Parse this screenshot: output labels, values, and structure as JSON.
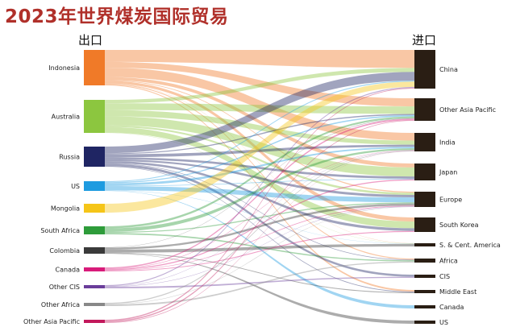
{
  "title": "2023年世界煤炭国际贸易",
  "export_header": "出口",
  "import_header": "进口",
  "colors": {
    "title": "#b0302a",
    "importer_node": "#2a1e14"
  },
  "exporters": [
    {
      "name": "Indonesia",
      "color": "#f07a28"
    },
    {
      "name": "Australia",
      "color": "#8cc63f"
    },
    {
      "name": "Russia",
      "color": "#1f2563"
    },
    {
      "name": "US",
      "color": "#1e9be0"
    },
    {
      "name": "Mongolia",
      "color": "#f5c518"
    },
    {
      "name": "South Africa",
      "color": "#2e9c3a"
    },
    {
      "name": "Colombia",
      "color": "#3a3a3a"
    },
    {
      "name": "Canada",
      "color": "#d81b7a"
    },
    {
      "name": "Other CIS",
      "color": "#6a3d9a"
    },
    {
      "name": "Other Africa",
      "color": "#888888"
    },
    {
      "name": "Other Asia Pacific",
      "color": "#c2185b"
    }
  ],
  "importers": [
    "China",
    "Other Asia Pacific",
    "India",
    "Japan",
    "Europe",
    "South Korea",
    "S. & Cent. America",
    "Africa",
    "CIS",
    "Middle East",
    "Canada",
    "US"
  ]
}
